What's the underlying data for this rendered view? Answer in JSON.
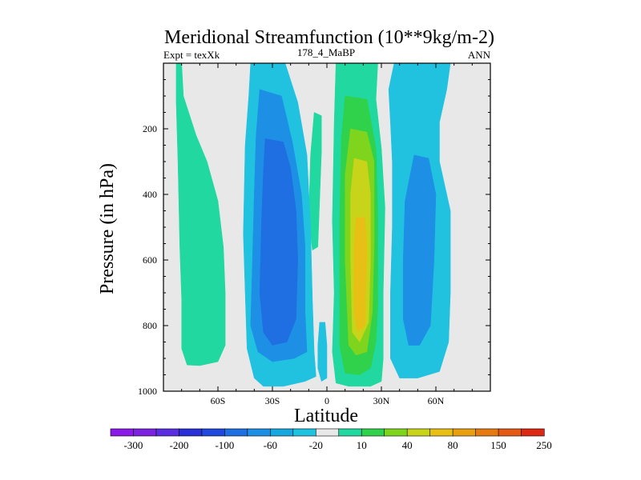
{
  "chart_data": {
    "type": "contour",
    "title": "Meridional Streamfunction (10**9kg/m-2)",
    "subtitle_left": "Expt = texXk",
    "subtitle_center": "178_4_MaBP",
    "subtitle_right": "ANN",
    "xlabel": "Latitude",
    "ylabel": "Pressure (in hPa)",
    "xlim": [
      -90,
      90
    ],
    "ylim": [
      1000,
      0
    ],
    "x_ticks": [
      {
        "value": -60,
        "label": "60S"
      },
      {
        "value": -30,
        "label": "30S"
      },
      {
        "value": 0,
        "label": "0"
      },
      {
        "value": 30,
        "label": "30N"
      },
      {
        "value": 60,
        "label": "60N"
      }
    ],
    "y_ticks": [
      {
        "value": 200,
        "label": "200"
      },
      {
        "value": 400,
        "label": "400"
      },
      {
        "value": 600,
        "label": "600"
      },
      {
        "value": 800,
        "label": "800"
      },
      {
        "value": 1000,
        "label": "1000"
      }
    ],
    "colorbar": {
      "colors": [
        "#8a1ae6",
        "#7a22e0",
        "#5a2ee0",
        "#2a2fd6",
        "#2048dc",
        "#1f6fe3",
        "#1d90e6",
        "#18a8e0",
        "#20c2e0",
        "#e8e8e8",
        "#20d8a0",
        "#2fd24a",
        "#7fd41e",
        "#c8d419",
        "#e8c015",
        "#e8a010",
        "#e67a12",
        "#e25a14",
        "#dd2814"
      ],
      "labels": [
        "-300",
        "-200",
        "-100",
        "-60",
        "-20",
        "10",
        "40",
        "80",
        "150",
        "250"
      ]
    },
    "regions": [
      {
        "level": "10",
        "color": "#20d8a0",
        "points": [
          [
            -83,
            0
          ],
          [
            -80,
            0
          ],
          [
            -79,
            100
          ],
          [
            -72,
            220
          ],
          [
            -66,
            300
          ],
          [
            -60,
            420
          ],
          [
            -57,
            560
          ],
          [
            -56,
            700
          ],
          [
            -56,
            860
          ],
          [
            -60,
            910
          ],
          [
            -70,
            922
          ],
          [
            -77,
            920
          ],
          [
            -80,
            870
          ],
          [
            -80,
            720
          ],
          [
            -81,
            560
          ],
          [
            -82,
            300
          ],
          [
            -83,
            120
          ]
        ]
      },
      {
        "level": "10",
        "color": "#20d8a0",
        "points": [
          [
            -7,
            150
          ],
          [
            -3,
            160
          ],
          [
            -3,
            270
          ],
          [
            -4,
            420
          ],
          [
            -5,
            560
          ],
          [
            -8,
            570
          ],
          [
            -10,
            470
          ],
          [
            -9,
            280
          ]
        ]
      },
      {
        "level": "10",
        "color": "#20d8a0",
        "points": [
          [
            5,
            0
          ],
          [
            28,
            0
          ],
          [
            27,
            110
          ],
          [
            30,
            260
          ],
          [
            32,
            440
          ],
          [
            31,
            700
          ],
          [
            31,
            900
          ],
          [
            30,
            970
          ],
          [
            24,
            985
          ],
          [
            12,
            985
          ],
          [
            5,
            975
          ],
          [
            3,
            880
          ],
          [
            4,
            700
          ],
          [
            3,
            480
          ],
          [
            4,
            180
          ]
        ]
      },
      {
        "level": "40",
        "color": "#2fd24a",
        "points": [
          [
            10,
            100
          ],
          [
            22,
            110
          ],
          [
            27,
            260
          ],
          [
            28,
            470
          ],
          [
            28,
            740
          ],
          [
            27,
            850
          ],
          [
            24,
            930
          ],
          [
            18,
            950
          ],
          [
            10,
            945
          ],
          [
            7,
            860
          ],
          [
            7,
            480
          ],
          [
            8,
            230
          ]
        ]
      },
      {
        "level": "80",
        "color": "#7fd41e",
        "points": [
          [
            13,
            200
          ],
          [
            22,
            210
          ],
          [
            26,
            300
          ],
          [
            26,
            560
          ],
          [
            25,
            760
          ],
          [
            22,
            880
          ],
          [
            16,
            890
          ],
          [
            12,
            860
          ],
          [
            10,
            600
          ],
          [
            10,
            340
          ]
        ]
      },
      {
        "level": "150",
        "color": "#c8d419",
        "points": [
          [
            15,
            290
          ],
          [
            22,
            300
          ],
          [
            24,
            400
          ],
          [
            24,
            600
          ],
          [
            23,
            790
          ],
          [
            18,
            850
          ],
          [
            14,
            820
          ],
          [
            13,
            600
          ],
          [
            13,
            400
          ]
        ]
      },
      {
        "level": "250",
        "color": "#e8c015",
        "points": [
          [
            16,
            470
          ],
          [
            21,
            470
          ],
          [
            22,
            560
          ],
          [
            21,
            800
          ],
          [
            17,
            820
          ],
          [
            15,
            760
          ],
          [
            15,
            560
          ]
        ]
      },
      {
        "level": "-20",
        "color": "#20c2e0",
        "points": [
          [
            -42,
            0
          ],
          [
            -23,
            0
          ],
          [
            -16,
            120
          ],
          [
            -11,
            280
          ],
          [
            -9,
            500
          ],
          [
            -8,
            720
          ],
          [
            -7,
            880
          ],
          [
            -6,
            955
          ],
          [
            -12,
            970
          ],
          [
            -24,
            985
          ],
          [
            -35,
            985
          ],
          [
            -40,
            960
          ],
          [
            -44,
            870
          ],
          [
            -45,
            700
          ],
          [
            -46,
            520
          ],
          [
            -45,
            250
          ],
          [
            -43,
            100
          ]
        ]
      },
      {
        "level": "-60",
        "color": "#1d90e6",
        "points": [
          [
            -37,
            80
          ],
          [
            -25,
            100
          ],
          [
            -19,
            240
          ],
          [
            -14,
            400
          ],
          [
            -12,
            560
          ],
          [
            -12,
            760
          ],
          [
            -11,
            880
          ],
          [
            -18,
            900
          ],
          [
            -30,
            910
          ],
          [
            -38,
            880
          ],
          [
            -42,
            800
          ],
          [
            -41,
            600
          ],
          [
            -40,
            400
          ],
          [
            -39,
            220
          ]
        ]
      },
      {
        "level": "-100",
        "color": "#1f6fe3",
        "points": [
          [
            -34,
            230
          ],
          [
            -24,
            240
          ],
          [
            -20,
            320
          ],
          [
            -17,
            450
          ],
          [
            -16,
            600
          ],
          [
            -17,
            780
          ],
          [
            -22,
            850
          ],
          [
            -30,
            860
          ],
          [
            -35,
            820
          ],
          [
            -37,
            700
          ],
          [
            -36,
            480
          ],
          [
            -35,
            330
          ]
        ]
      },
      {
        "level": "-20",
        "color": "#20c2e0",
        "points": [
          [
            -4,
            790
          ],
          [
            -1,
            790
          ],
          [
            0,
            860
          ],
          [
            0,
            960
          ],
          [
            -3,
            970
          ],
          [
            -5,
            930
          ],
          [
            -5,
            860
          ]
        ]
      },
      {
        "level": "-20",
        "color": "#20c2e0",
        "points": [
          [
            37,
            0
          ],
          [
            68,
            0
          ],
          [
            66,
            80
          ],
          [
            62,
            180
          ],
          [
            62,
            300
          ],
          [
            68,
            450
          ],
          [
            68,
            700
          ],
          [
            67,
            850
          ],
          [
            62,
            940
          ],
          [
            50,
            960
          ],
          [
            40,
            960
          ],
          [
            35,
            900
          ],
          [
            35,
            700
          ],
          [
            36,
            500
          ],
          [
            36,
            300
          ],
          [
            35,
            180
          ],
          [
            34,
            80
          ]
        ]
      },
      {
        "level": "-60",
        "color": "#1d90e6",
        "points": [
          [
            48,
            280
          ],
          [
            56,
            290
          ],
          [
            60,
            400
          ],
          [
            59,
            600
          ],
          [
            57,
            800
          ],
          [
            51,
            860
          ],
          [
            45,
            860
          ],
          [
            42,
            780
          ],
          [
            42,
            600
          ],
          [
            43,
            420
          ]
        ]
      },
      {
        "level": "10",
        "color": "#20d8a0",
        "points": [
          [
            -70,
            500
          ],
          [
            -68,
            470
          ],
          [
            -66,
            500
          ],
          [
            -66,
            600
          ],
          [
            -67,
            720
          ],
          [
            -69,
            700
          ],
          [
            -70,
            600
          ]
        ]
      },
      {
        "level": "10",
        "color": "#20d8a0",
        "points": [
          [
            -76,
            500
          ],
          [
            -75,
            510
          ],
          [
            -75,
            780
          ],
          [
            -76,
            790
          ]
        ]
      }
    ]
  }
}
